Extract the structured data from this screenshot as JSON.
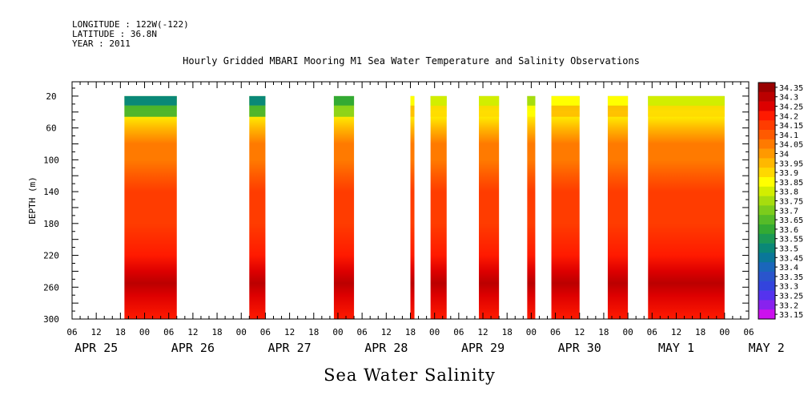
{
  "meta": {
    "longitude": "LONGITUDE : 122W(-122)",
    "latitude": "LATITUDE : 36.8N",
    "year": "YEAR : 2011"
  },
  "figure_title": "Hourly Gridded MBARI Mooring M1 Sea Water Temperature and Salinity Observations",
  "variable_title": "Sea Water Salinity",
  "chart_data": {
    "type": "heatmap",
    "title": "Hourly Gridded MBARI Mooring M1 Sea Water Temperature and Salinity Observations",
    "subtitle": "Sea Water Salinity",
    "ylabel": "DEPTH (m)",
    "xlabel": "",
    "y_reversed": true,
    "ylim": [
      300,
      2
    ],
    "yticks": [
      20,
      60,
      100,
      140,
      180,
      220,
      260,
      300
    ],
    "xlim_hours_since_apr25_00": [
      6,
      174
    ],
    "x_hour_ticks": [
      "06",
      "12",
      "18",
      "00",
      "06",
      "12",
      "18",
      "00",
      "06",
      "12",
      "18",
      "00",
      "06",
      "12",
      "18",
      "00",
      "06",
      "12",
      "18",
      "00",
      "06",
      "12",
      "18",
      "00",
      "06",
      "12",
      "18",
      "00",
      "06"
    ],
    "x_day_labels": [
      "APR 25",
      "APR 26",
      "APR 27",
      "APR 28",
      "APR 29",
      "APR 30",
      "MAY  1",
      "MAY  2"
    ],
    "colorbar": {
      "levels": [
        "34.35",
        "34.3",
        "34.25",
        "34.2",
        "34.15",
        "34.1",
        "34.05",
        "34",
        "33.95",
        "33.9",
        "33.85",
        "33.8",
        "33.75",
        "33.7",
        "33.65",
        "33.6",
        "33.55",
        "33.5",
        "33.45",
        "33.4",
        "33.35",
        "33.3",
        "33.25",
        "33.2",
        "33.15"
      ],
      "colors": [
        "#990000",
        "#bb0000",
        "#dd0000",
        "#ff1a00",
        "#ff3c00",
        "#ff5a00",
        "#ff7a00",
        "#ff9900",
        "#ffb800",
        "#ffd800",
        "#ffff00",
        "#d2ee00",
        "#a6dd0e",
        "#7ccc1c",
        "#55bb28",
        "#33aa33",
        "#1b9955",
        "#0a8877",
        "#0a7799",
        "#1a66bb",
        "#2a55cc",
        "#3344dd",
        "#5533ee",
        "#8822ee",
        "#cc11ee"
      ]
    },
    "data_segments": [
      {
        "start": "APR 25 19:00",
        "end": "APR 26 08:00",
        "surface_salinity": 33.5
      },
      {
        "start": "APR 27 02:00",
        "end": "APR 27 06:00",
        "surface_salinity": 33.5
      },
      {
        "start": "APR 27 23:00",
        "end": "APR 28 04:00",
        "surface_salinity": 33.6
      },
      {
        "start": "APR 28 18:00",
        "end": "APR 28 19:00",
        "surface_salinity": 33.85
      },
      {
        "start": "APR 28 23:00",
        "end": "APR 29 03:00",
        "surface_salinity": 33.8
      },
      {
        "start": "APR 29 11:00",
        "end": "APR 29 16:00",
        "surface_salinity": 33.8
      },
      {
        "start": "APR 29 23:00",
        "end": "APR 30 01:00",
        "surface_salinity": 33.75
      },
      {
        "start": "APR 30 05:00",
        "end": "APR 30 12:00",
        "surface_salinity": 33.85
      },
      {
        "start": "APR 30 19:00",
        "end": "MAY 1 00:00",
        "surface_salinity": 33.85
      },
      {
        "start": "MAY 1 05:00",
        "end": "MAY 2 00:00",
        "surface_salinity": 33.8
      }
    ],
    "profile": [
      {
        "depth": 20,
        "salinity": 33.7
      },
      {
        "depth": 40,
        "salinity": 33.85
      },
      {
        "depth": 60,
        "salinity": 33.95
      },
      {
        "depth": 80,
        "salinity": 34.05
      },
      {
        "depth": 100,
        "salinity": 34.05
      },
      {
        "depth": 120,
        "salinity": 34.1
      },
      {
        "depth": 140,
        "salinity": 34.15
      },
      {
        "depth": 180,
        "salinity": 34.15
      },
      {
        "depth": 220,
        "salinity": 34.2
      },
      {
        "depth": 240,
        "salinity": 34.25
      },
      {
        "depth": 255,
        "salinity": 34.3
      },
      {
        "depth": 270,
        "salinity": 34.25
      },
      {
        "depth": 300,
        "salinity": 34.2
      }
    ]
  }
}
